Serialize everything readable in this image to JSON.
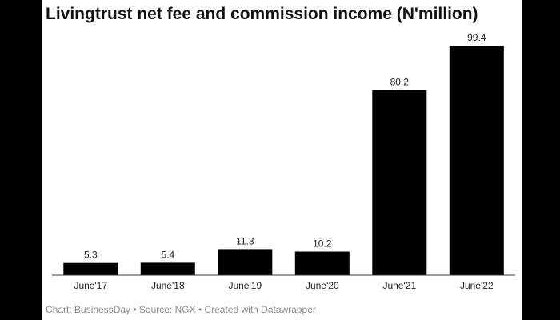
{
  "chart_data": {
    "type": "bar",
    "title": "Livingtrust net fee and commission income (N'million)",
    "categories": [
      "June'17",
      "June'18",
      "June'19",
      "June'20",
      "June'21",
      "June'22"
    ],
    "values": [
      5.3,
      5.4,
      11.3,
      10.2,
      80.2,
      99.4
    ],
    "data_labels": [
      "5.3",
      "5.4",
      "11.3",
      "10.2",
      "80.2",
      "99.4"
    ],
    "ylim": [
      0,
      99.4
    ],
    "grid": false,
    "legend": "none",
    "bar_color": "#000000"
  },
  "footer": {
    "credit": "Chart: BusinessDay • Source: NGX • Created with Datawrapper"
  }
}
